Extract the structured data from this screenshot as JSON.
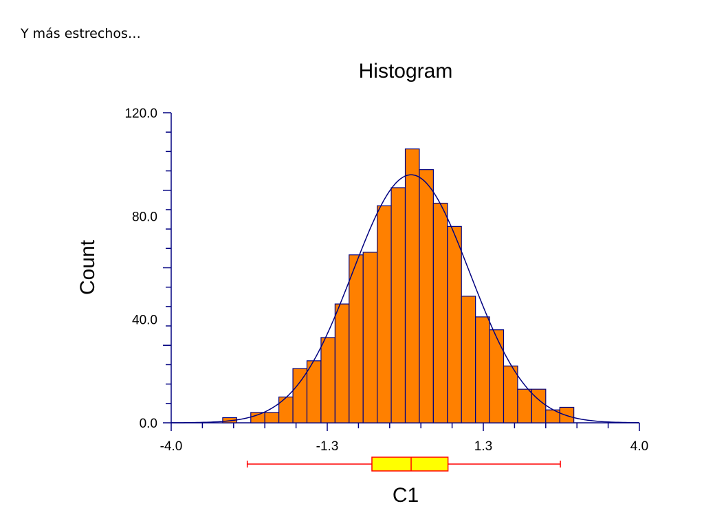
{
  "slide": {
    "caption": "Y más estrechos…"
  },
  "chart_data": {
    "type": "bar",
    "title": "Histogram",
    "xlabel": "C1",
    "ylabel": "Count",
    "xlim": [
      -4.0,
      4.0
    ],
    "ylim": [
      0.0,
      120.0
    ],
    "x_tick_labels": [
      "-4.0",
      "-1.3",
      "1.3",
      "4.0"
    ],
    "y_tick_labels": [
      "0.0",
      "40.0",
      "80.0",
      "120.0"
    ],
    "bin_width": 0.24,
    "bins": [
      {
        "start": -3.12,
        "count": 2
      },
      {
        "start": -2.64,
        "count": 4
      },
      {
        "start": -2.4,
        "count": 4
      },
      {
        "start": -2.16,
        "count": 10
      },
      {
        "start": -1.92,
        "count": 21
      },
      {
        "start": -1.68,
        "count": 24
      },
      {
        "start": -1.44,
        "count": 33
      },
      {
        "start": -1.2,
        "count": 46
      },
      {
        "start": -0.96,
        "count": 65
      },
      {
        "start": -0.72,
        "count": 66
      },
      {
        "start": -0.48,
        "count": 84
      },
      {
        "start": -0.24,
        "count": 91
      },
      {
        "start": 0.0,
        "count": 106
      },
      {
        "start": 0.24,
        "count": 98
      },
      {
        "start": 0.48,
        "count": 85
      },
      {
        "start": 0.72,
        "count": 76
      },
      {
        "start": 0.96,
        "count": 49
      },
      {
        "start": 1.2,
        "count": 41
      },
      {
        "start": 1.44,
        "count": 36
      },
      {
        "start": 1.68,
        "count": 22
      },
      {
        "start": 1.92,
        "count": 13
      },
      {
        "start": 2.16,
        "count": 13
      },
      {
        "start": 2.4,
        "count": 5
      },
      {
        "start": 2.64,
        "count": 6
      }
    ],
    "normal_curve": {
      "mean": 0.1,
      "sd": 1.0,
      "peak": 96
    },
    "boxplot": {
      "min": -2.7,
      "q1": -0.57,
      "median": 0.1,
      "q3": 0.73,
      "max": 2.65
    },
    "colors": {
      "bar_fill": "#FF8000",
      "bar_stroke": "#000080",
      "curve": "#000080",
      "axis": "#000080",
      "box_fill": "#FFFF00",
      "box_stroke": "#FF0000"
    },
    "grid": false,
    "legend": "none"
  }
}
